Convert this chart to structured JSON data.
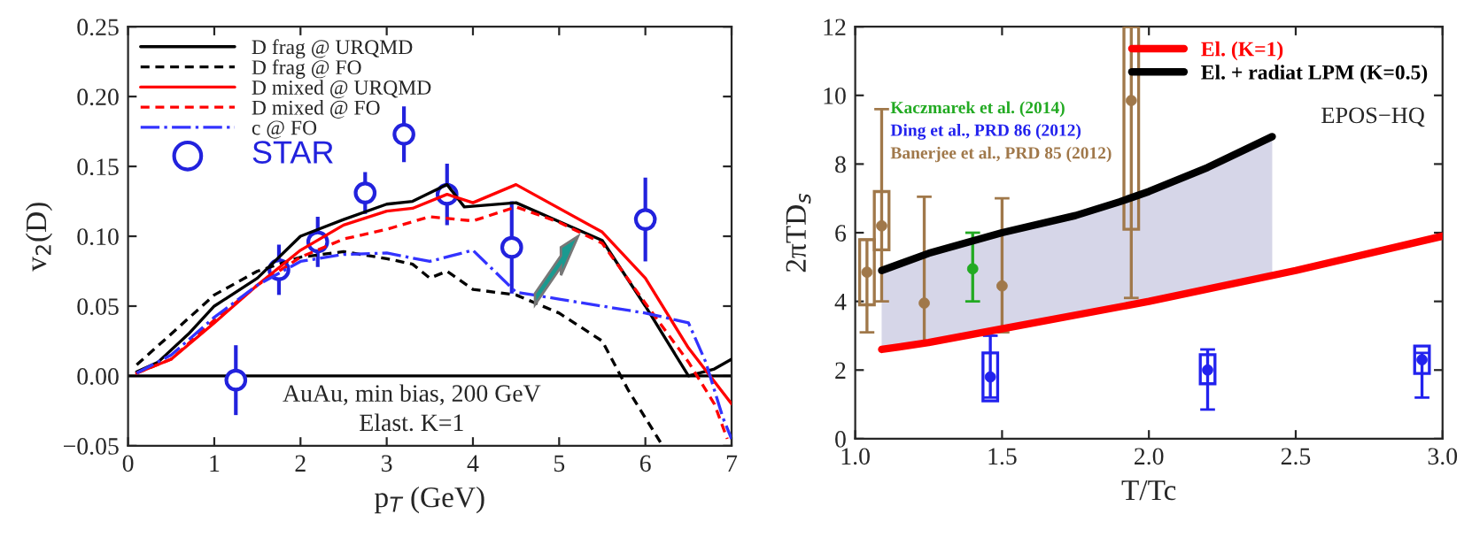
{
  "chart_data": [
    {
      "type": "line",
      "xlabel": "p$_{T}$ (GeV)",
      "ylabel": "v$_{2}$(D)",
      "xlim": [
        0,
        7
      ],
      "ylim": [
        -0.05,
        0.25
      ],
      "xticks": [
        0,
        1,
        2,
        3,
        4,
        5,
        6,
        7
      ],
      "yticks": [
        {
          "value": -0.05,
          "label": "−0.05"
        },
        {
          "value": 0,
          "label": "0.00"
        },
        {
          "value": 0.05,
          "label": "0.05"
        },
        {
          "value": 0.1,
          "label": "0.10"
        },
        {
          "value": 0.15,
          "label": "0.15"
        },
        {
          "value": 0.2,
          "label": "0.20"
        },
        {
          "value": 0.25,
          "label": "0.25"
        }
      ],
      "legend": "top left",
      "grid": false,
      "ref_lines": [
        {
          "axis": "y",
          "value": 0,
          "color": "#000000"
        }
      ],
      "annotations": [
        "AuAu, min bias, 200 GeV",
        "Elast. K=1"
      ],
      "series": [
        {
          "name": "D frag @ URQMD",
          "color": "#000000",
          "line_style": "solid",
          "x": [
            0.1,
            0.35,
            0.7,
            1.0,
            1.5,
            2.0,
            2.5,
            3.0,
            3.3,
            3.7,
            3.9,
            4.5,
            5.5,
            6.0,
            6.5,
            6.8,
            7.0
          ],
          "values": [
            0.003,
            0.01,
            0.03,
            0.05,
            0.07,
            0.1,
            0.112,
            0.123,
            0.125,
            0.137,
            0.121,
            0.124,
            0.097,
            0.05,
            0.0,
            0.005,
            0.012
          ]
        },
        {
          "name": "D frag @ FO",
          "color": "#000000",
          "line_style": "dashed",
          "x": [
            0.1,
            0.5,
            1.0,
            1.5,
            2.0,
            2.5,
            3.0,
            3.3,
            3.5,
            3.7,
            4.0,
            4.5,
            5.0,
            5.5,
            5.8,
            6.1,
            6.2
          ],
          "values": [
            0.008,
            0.03,
            0.058,
            0.075,
            0.085,
            0.089,
            0.084,
            0.08,
            0.07,
            0.075,
            0.062,
            0.058,
            0.045,
            0.025,
            -0.01,
            -0.04,
            -0.05
          ]
        },
        {
          "name": "D mixed @ URQMD",
          "color": "#ff0000",
          "line_style": "solid",
          "x": [
            0.1,
            0.5,
            1.0,
            1.5,
            2.0,
            2.5,
            3.0,
            3.3,
            3.7,
            4.0,
            4.5,
            5.5,
            6.0,
            6.5,
            7.0
          ],
          "values": [
            0.002,
            0.012,
            0.038,
            0.065,
            0.09,
            0.108,
            0.118,
            0.12,
            0.13,
            0.124,
            0.137,
            0.103,
            0.07,
            0.02,
            -0.02
          ]
        },
        {
          "name": "D mixed @ FO",
          "color": "#ff0000",
          "line_style": "dashed",
          "x": [
            0.1,
            0.5,
            1.0,
            1.5,
            2.0,
            2.5,
            3.0,
            3.5,
            4.0,
            4.5,
            5.0,
            5.5,
            6.0,
            6.5,
            6.8,
            6.95
          ],
          "values": [
            0.002,
            0.012,
            0.04,
            0.065,
            0.085,
            0.098,
            0.105,
            0.114,
            0.111,
            0.121,
            0.11,
            0.095,
            0.052,
            0.01,
            -0.02,
            -0.045
          ]
        },
        {
          "name": "c @ FO",
          "color": "#3333ff",
          "line_style": "dashdot",
          "x": [
            0.1,
            0.5,
            1.0,
            1.5,
            2.0,
            2.5,
            3.0,
            3.5,
            4.0,
            4.5,
            5.0,
            6.0,
            6.5,
            6.7,
            6.9,
            7.0
          ],
          "values": [
            0.002,
            0.015,
            0.042,
            0.065,
            0.082,
            0.087,
            0.088,
            0.082,
            0.09,
            0.06,
            0.055,
            0.045,
            0.038,
            0.01,
            -0.03,
            -0.045
          ]
        },
        {
          "name": "STAR",
          "type": "scatter",
          "marker": "circle",
          "color": "#2222dd",
          "x": [
            1.25,
            1.75,
            2.2,
            2.75,
            3.2,
            3.7,
            4.45,
            6.0
          ],
          "values": [
            -0.003,
            0.076,
            0.096,
            0.131,
            0.173,
            0.13,
            0.092,
            0.112
          ],
          "errors": [
            0.025,
            0.018,
            0.018,
            0.015,
            0.02,
            0.022,
            0.033,
            0.03
          ]
        }
      ]
    },
    {
      "type": "line",
      "xlabel": "T/Tc",
      "ylabel": "2πTD$_{s}$",
      "xlim": [
        1.0,
        3.0
      ],
      "ylim": [
        0,
        12
      ],
      "xticks": [
        {
          "value": 1.0,
          "label": "1.0"
        },
        {
          "value": 1.5,
          "label": "1.5"
        },
        {
          "value": 2.0,
          "label": "2.0"
        },
        {
          "value": 2.5,
          "label": "2.5"
        },
        {
          "value": 3.0,
          "label": "3.0"
        }
      ],
      "yticks": [
        0,
        2,
        4,
        6,
        8,
        10,
        12
      ],
      "legend": "top right",
      "grid": false,
      "annotations": [
        "EPOS−HQ"
      ],
      "series": [
        {
          "name": "El. (K=1)",
          "color": "#ff0000",
          "line_style": "solid",
          "x": [
            1.09,
            1.25,
            1.5,
            2.0,
            2.5,
            3.0
          ],
          "values": [
            2.6,
            2.8,
            3.2,
            4.0,
            4.9,
            5.9
          ]
        },
        {
          "name": "El. + radiat LPM (K=0.5)",
          "color": "#000000",
          "line_style": "solid",
          "x": [
            1.09,
            1.25,
            1.5,
            1.75,
            1.9,
            2.0,
            2.2,
            2.42
          ],
          "values": [
            4.9,
            5.4,
            6.0,
            6.5,
            6.9,
            7.2,
            7.9,
            8.8
          ],
          "lower": [
            2.6,
            2.8,
            3.15,
            3.6,
            3.85,
            4.0,
            4.35,
            4.75
          ],
          "upper": [
            4.9,
            5.4,
            6.0,
            6.5,
            6.9,
            7.2,
            7.9,
            8.8
          ]
        },
        {
          "name": "Kaczmarek et al. (2014)",
          "type": "scatter",
          "marker": "circle",
          "color": "#22aa22",
          "x": [
            1.4
          ],
          "values": [
            4.95
          ],
          "errors": [
            [
              4.0,
              6.0
            ]
          ]
        },
        {
          "name": "Ding et al., PRD 86 (2012)",
          "type": "scatter",
          "marker": "circle",
          "color": "#2222ee",
          "x": [
            1.46,
            2.2,
            2.93
          ],
          "values": [
            1.8,
            2.0,
            2.3
          ],
          "errors": [
            [
              1.2,
              3.0
            ],
            [
              0.85,
              2.6
            ],
            [
              1.2,
              2.5
            ]
          ]
        },
        {
          "name": "Banerjee et al., PRD 85 (2012)",
          "type": "scatter",
          "marker": "circle",
          "color": "#a0784a",
          "x": [
            1.04,
            1.09,
            1.235,
            1.5,
            1.94
          ],
          "values": [
            4.85,
            6.2,
            3.95,
            4.45,
            9.85
          ],
          "errors": [
            [
              3.1,
              5.8
            ],
            [
              4.0,
              9.6
            ],
            [
              2.8,
              7.05
            ],
            [
              3.1,
              7.0
            ],
            [
              4.1,
              12
            ]
          ]
        },
        {
          "type": "bar",
          "color": "#2222ee",
          "x": [
            1.46,
            2.2,
            2.93
          ],
          "base": [
            1.1,
            1.6,
            1.9
          ],
          "values": [
            1.4,
            0.85,
            0.8
          ]
        },
        {
          "type": "bar",
          "color": "#a0784a",
          "x": [
            1.04,
            1.09,
            1.94
          ],
          "base": [
            3.9,
            5.5,
            6.1
          ],
          "values": [
            1.9,
            1.7,
            5.9
          ]
        }
      ]
    }
  ]
}
